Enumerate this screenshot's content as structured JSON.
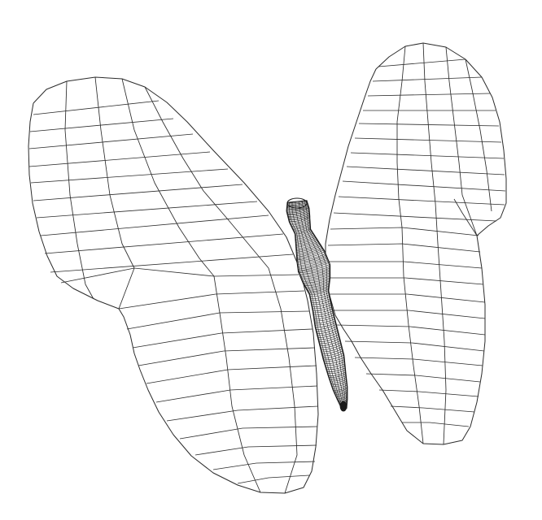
{
  "colors": {
    "background": "#ffffff",
    "wing_line": "#2b2b2b",
    "body_mesh": "#1a1a1a"
  },
  "figure": {
    "subject": "butterfly-wireframe"
  }
}
